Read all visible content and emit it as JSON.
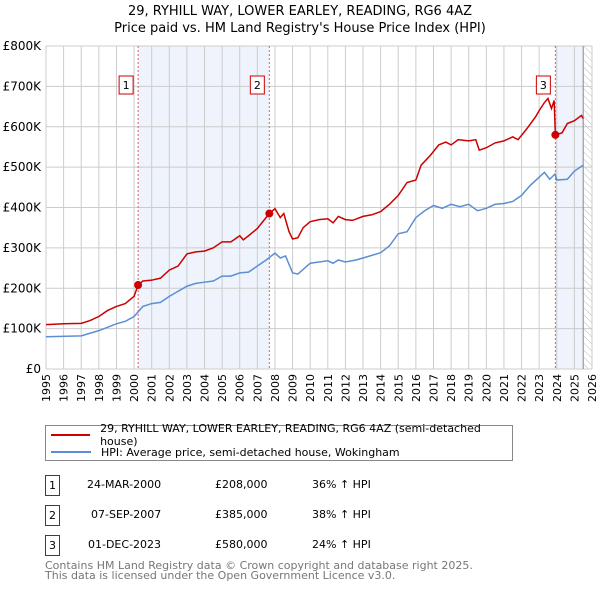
{
  "chart_data": {
    "type": "line",
    "title": "29, RYHILL WAY, LOWER EARLEY, READING, RG6 4AZ",
    "subtitle": "Price paid vs. HM Land Registry's House Price Index (HPI)",
    "xlim": [
      1995,
      2026
    ],
    "ylim": [
      0,
      800000
    ],
    "x_ticks": [
      "1995",
      "1996",
      "1997",
      "1998",
      "1999",
      "2000",
      "2001",
      "2002",
      "2003",
      "2004",
      "2005",
      "2006",
      "2007",
      "2008",
      "2009",
      "2010",
      "2011",
      "2012",
      "2013",
      "2014",
      "2015",
      "2016",
      "2017",
      "2018",
      "2019",
      "2020",
      "2021",
      "2022",
      "2023",
      "2024",
      "2025",
      "2026"
    ],
    "y_ticks": [
      "£0",
      "£100K",
      "£200K",
      "£300K",
      "£400K",
      "£500K",
      "£600K",
      "£700K",
      "£800K"
    ],
    "grid": true,
    "series": [
      {
        "name": "29, RYHILL WAY, LOWER EARLEY, READING, RG6 4AZ (semi-detached house)",
        "color": "#cc0000",
        "points": [
          [
            1995,
            110
          ],
          [
            1996,
            112
          ],
          [
            1997,
            113
          ],
          [
            1997.5,
            120
          ],
          [
            1998,
            130
          ],
          [
            1998.5,
            145
          ],
          [
            1999,
            155
          ],
          [
            1999.5,
            162
          ],
          [
            2000,
            180
          ],
          [
            2000.23,
            208
          ],
          [
            2000.5,
            218
          ],
          [
            2001,
            220
          ],
          [
            2001.5,
            225
          ],
          [
            2002,
            245
          ],
          [
            2002.5,
            255
          ],
          [
            2003,
            285
          ],
          [
            2003.5,
            290
          ],
          [
            2004,
            292
          ],
          [
            2004.5,
            300
          ],
          [
            2005,
            315
          ],
          [
            2005.5,
            315
          ],
          [
            2006,
            330
          ],
          [
            2006.2,
            320
          ],
          [
            2006.5,
            330
          ],
          [
            2007,
            348
          ],
          [
            2007.68,
            385
          ],
          [
            2008,
            397
          ],
          [
            2008.3,
            375
          ],
          [
            2008.5,
            385
          ],
          [
            2008.8,
            340
          ],
          [
            2009,
            322
          ],
          [
            2009.3,
            325
          ],
          [
            2009.6,
            350
          ],
          [
            2010,
            365
          ],
          [
            2010.5,
            370
          ],
          [
            2011,
            372
          ],
          [
            2011.3,
            362
          ],
          [
            2011.6,
            378
          ],
          [
            2012,
            370
          ],
          [
            2012.4,
            368
          ],
          [
            2013,
            378
          ],
          [
            2013.5,
            382
          ],
          [
            2014,
            390
          ],
          [
            2014.5,
            408
          ],
          [
            2015,
            430
          ],
          [
            2015.5,
            462
          ],
          [
            2016,
            468
          ],
          [
            2016.3,
            505
          ],
          [
            2016.8,
            528
          ],
          [
            2017.3,
            555
          ],
          [
            2017.7,
            562
          ],
          [
            2018,
            555
          ],
          [
            2018.4,
            568
          ],
          [
            2019,
            565
          ],
          [
            2019.4,
            568
          ],
          [
            2019.6,
            542
          ],
          [
            2020,
            548
          ],
          [
            2020.5,
            560
          ],
          [
            2021,
            565
          ],
          [
            2021.5,
            575
          ],
          [
            2021.8,
            568
          ],
          [
            2022.3,
            595
          ],
          [
            2022.8,
            625
          ],
          [
            2023,
            640
          ],
          [
            2023.3,
            660
          ],
          [
            2023.5,
            670
          ],
          [
            2023.7,
            645
          ],
          [
            2023.85,
            665
          ],
          [
            2023.92,
            580
          ],
          [
            2024.3,
            585
          ],
          [
            2024.6,
            608
          ],
          [
            2025,
            615
          ],
          [
            2025.4,
            628
          ],
          [
            2025.5,
            620
          ]
        ]
      },
      {
        "name": "HPI: Average price, semi-detached house, Wokingham",
        "color": "#5b8fd1",
        "points": [
          [
            1995,
            80
          ],
          [
            1997,
            82
          ],
          [
            1998,
            95
          ],
          [
            1999,
            112
          ],
          [
            1999.5,
            118
          ],
          [
            2000,
            130
          ],
          [
            2000.5,
            155
          ],
          [
            2001,
            162
          ],
          [
            2001.5,
            165
          ],
          [
            2002,
            180
          ],
          [
            2003,
            205
          ],
          [
            2003.5,
            212
          ],
          [
            2004,
            215
          ],
          [
            2004.5,
            218
          ],
          [
            2005,
            230
          ],
          [
            2005.5,
            230
          ],
          [
            2006,
            238
          ],
          [
            2006.5,
            240
          ],
          [
            2007,
            255
          ],
          [
            2007.5,
            270
          ],
          [
            2008,
            287
          ],
          [
            2008.3,
            275
          ],
          [
            2008.6,
            280
          ],
          [
            2009,
            238
          ],
          [
            2009.3,
            235
          ],
          [
            2010,
            262
          ],
          [
            2011,
            268
          ],
          [
            2011.3,
            262
          ],
          [
            2011.6,
            270
          ],
          [
            2012,
            265
          ],
          [
            2012.6,
            270
          ],
          [
            2013,
            275
          ],
          [
            2014,
            288
          ],
          [
            2014.5,
            305
          ],
          [
            2015,
            335
          ],
          [
            2015.5,
            340
          ],
          [
            2016,
            375
          ],
          [
            2016.5,
            392
          ],
          [
            2017,
            405
          ],
          [
            2017.5,
            398
          ],
          [
            2018,
            408
          ],
          [
            2018.5,
            402
          ],
          [
            2019,
            408
          ],
          [
            2019.5,
            392
          ],
          [
            2020,
            398
          ],
          [
            2020.5,
            408
          ],
          [
            2021,
            410
          ],
          [
            2021.5,
            415
          ],
          [
            2022,
            430
          ],
          [
            2022.5,
            455
          ],
          [
            2023,
            475
          ],
          [
            2023.3,
            487
          ],
          [
            2023.6,
            470
          ],
          [
            2023.9,
            483
          ],
          [
            2024,
            468
          ],
          [
            2024.6,
            470
          ],
          [
            2025,
            490
          ],
          [
            2025.5,
            505
          ]
        ]
      }
    ],
    "sales": [
      {
        "id": "1",
        "x": 2000.23,
        "price": 208,
        "date": "24-MAR-2000",
        "price_label": "£208,000",
        "hpi": "36% ↑ HPI"
      },
      {
        "id": "2",
        "x": 2007.68,
        "price": 385,
        "date": "07-SEP-2007",
        "price_label": "£385,000",
        "hpi": "38% ↑ HPI"
      },
      {
        "id": "3",
        "x": 2023.92,
        "price": 580,
        "date": "01-DEC-2023",
        "price_label": "£580,000",
        "hpi": "24% ↑ HPI"
      }
    ],
    "shaded_ranges": [
      [
        2000.23,
        2007.68
      ],
      [
        2023.92,
        2025.5
      ]
    ],
    "hatched_from": 2025.5,
    "footer": [
      "Contains HM Land Registry data © Crown copyright and database right 2025.",
      "This data is licensed under the Open Government Licence v3.0."
    ]
  }
}
